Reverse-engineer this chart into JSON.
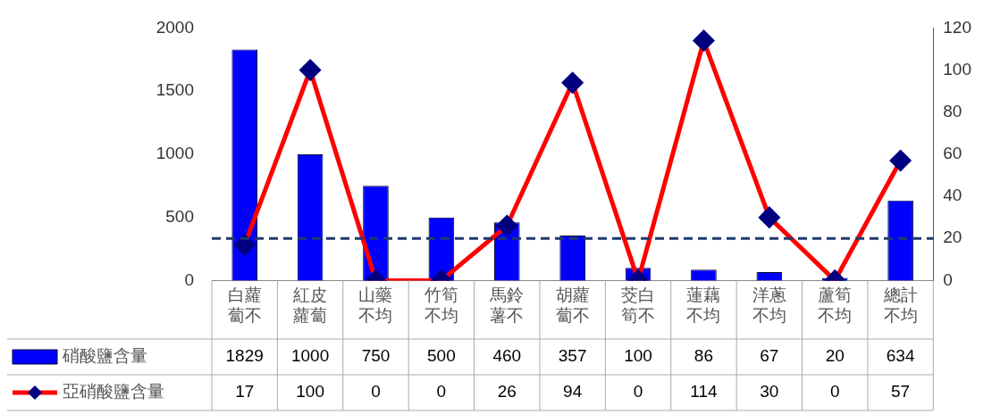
{
  "chart_data": {
    "type": "bar",
    "categories": [
      "白蘿蔔不",
      "紅皮蘿蔔",
      "山藥不均",
      "竹筍不均",
      "馬鈴薯不",
      "胡蘿蔔不",
      "茭白筍不",
      "蓮藕不均",
      "洋蔥不均",
      "蘆筍不均",
      "總計不均"
    ],
    "series": [
      {
        "name": "硝酸鹽含量",
        "color": "#0000ff",
        "values": [
          1829,
          1000,
          750,
          500,
          460,
          357,
          100,
          86,
          67,
          20,
          634
        ]
      },
      {
        "name": "亞硝酸鹽含量",
        "type": "line",
        "axis": "y2",
        "color": "#ff0000",
        "marker": "diamond",
        "values": [
          17,
          100,
          0,
          0,
          26,
          94,
          0,
          114,
          30,
          0,
          57
        ]
      }
    ],
    "ylim": [
      0,
      2000
    ],
    "yticks": [
      0,
      500,
      1000,
      1500,
      2000
    ],
    "y2lim": [
      0,
      120
    ],
    "y2ticks": [
      0,
      20,
      40,
      60,
      80,
      100,
      120
    ],
    "ref_lines": [
      {
        "axis": "y2",
        "value": 20,
        "color": "#1f3a6e",
        "line_style": "dashed"
      }
    ],
    "data_labels": true,
    "legend": "bottom left",
    "grid": false
  }
}
